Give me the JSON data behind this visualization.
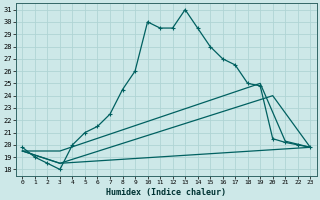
{
  "xlabel": "Humidex (Indice chaleur)",
  "bg_color": "#cde8e8",
  "grid_color": "#b0d4d4",
  "line_color": "#006060",
  "xlim": [
    -0.5,
    23.5
  ],
  "ylim": [
    17.5,
    31.5
  ],
  "xticks": [
    0,
    1,
    2,
    3,
    4,
    5,
    6,
    7,
    8,
    9,
    10,
    11,
    12,
    13,
    14,
    15,
    16,
    17,
    18,
    19,
    20,
    21,
    22,
    23
  ],
  "yticks": [
    18,
    19,
    20,
    21,
    22,
    23,
    24,
    25,
    26,
    27,
    28,
    29,
    30,
    31
  ],
  "line1_x": [
    0,
    1,
    2,
    3,
    4,
    5,
    6,
    7,
    8,
    9,
    10,
    11,
    12,
    13,
    14,
    15,
    16,
    17,
    18,
    19,
    20,
    21,
    22,
    23
  ],
  "line1_y": [
    19.8,
    19.0,
    18.5,
    18.0,
    20.0,
    21.0,
    21.5,
    22.5,
    24.5,
    26.0,
    30.0,
    29.5,
    29.5,
    31.0,
    29.5,
    28.0,
    27.0,
    26.5,
    25.0,
    24.8,
    20.5,
    20.2,
    20.0,
    19.8
  ],
  "line2_x": [
    0,
    3,
    23
  ],
  "line2_y": [
    19.5,
    18.5,
    19.8
  ],
  "line3_x": [
    0,
    3,
    20,
    23
  ],
  "line3_y": [
    19.5,
    18.5,
    24.0,
    19.8
  ],
  "line4_x": [
    0,
    3,
    19,
    21,
    23
  ],
  "line4_y": [
    19.5,
    19.5,
    25.0,
    20.3,
    19.8
  ]
}
